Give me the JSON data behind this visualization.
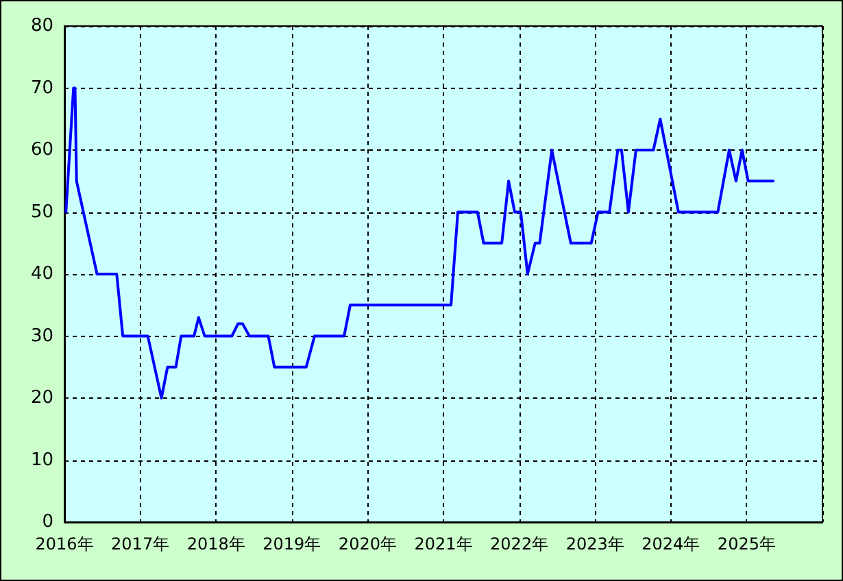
{
  "chart_data": {
    "type": "line",
    "x": [
      2016.02,
      2016.12,
      2016.14,
      2016.16,
      2016.43,
      2016.69,
      2016.77,
      2017.1,
      2017.28,
      2017.36,
      2017.47,
      2017.54,
      2017.71,
      2017.77,
      2017.85,
      2018.21,
      2018.29,
      2018.35,
      2018.44,
      2018.69,
      2018.77,
      2019.19,
      2019.3,
      2019.69,
      2019.77,
      2021.1,
      2021.19,
      2021.45,
      2021.53,
      2021.77,
      2021.86,
      2021.94,
      2022.02,
      2022.11,
      2022.21,
      2022.27,
      2022.43,
      2022.68,
      2022.95,
      2023.04,
      2023.19,
      2023.3,
      2023.35,
      2023.44,
      2023.54,
      2023.77,
      2023.86,
      2024.1,
      2024.62,
      2024.77,
      2024.86,
      2024.94,
      2025.02,
      2025.35
    ],
    "series": [
      {
        "color": "#0000ff",
        "values": [
          50,
          70,
          70,
          55,
          40,
          40,
          30,
          30,
          20,
          25,
          25,
          30,
          30,
          33,
          30,
          30,
          32,
          32,
          30,
          30,
          25,
          25,
          30,
          30,
          35,
          35,
          50,
          50,
          45,
          45,
          55,
          50,
          50,
          40,
          45,
          45,
          60,
          45,
          45,
          50,
          50,
          60,
          60,
          50,
          60,
          60,
          65,
          50,
          50,
          60,
          55,
          60,
          55,
          55
        ]
      }
    ],
    "xlim": [
      2016,
      2026
    ],
    "xticks": [
      {
        "value": 2016,
        "label": "2016年"
      },
      {
        "value": 2017,
        "label": "2017年"
      },
      {
        "value": 2018,
        "label": "2018年"
      },
      {
        "value": 2019,
        "label": "2019年"
      },
      {
        "value": 2020,
        "label": "2020年"
      },
      {
        "value": 2021,
        "label": "2021年"
      },
      {
        "value": 2022,
        "label": "2022年"
      },
      {
        "value": 2023,
        "label": "2023年"
      },
      {
        "value": 2024,
        "label": "2024年"
      },
      {
        "value": 2025,
        "label": "2025年"
      },
      {
        "value": 2026,
        "label": null
      }
    ],
    "ylim": [
      0,
      80
    ],
    "yticks": [
      0,
      10,
      20,
      30,
      40,
      50,
      60,
      70,
      80
    ],
    "grid": true,
    "marker": "none",
    "line_style": "solid"
  }
}
